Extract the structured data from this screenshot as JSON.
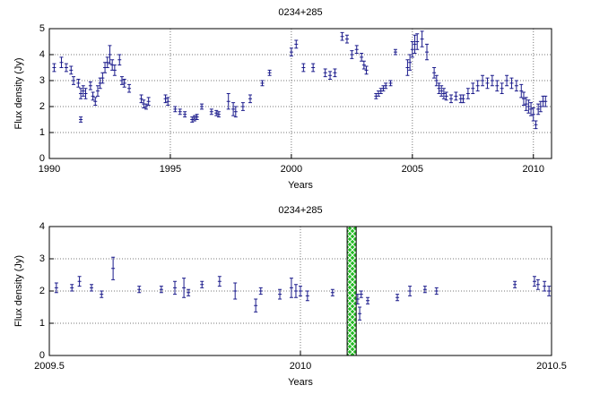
{
  "chart_data": [
    {
      "type": "errorbar",
      "title": "0234+285",
      "xlabel": "Years",
      "ylabel": "Flux density (Jy)",
      "xlim": [
        1990,
        2010.75
      ],
      "ylim": [
        0,
        5
      ],
      "xticks": [
        1990,
        1995,
        2000,
        2005,
        2010
      ],
      "yticks": [
        0,
        1,
        2,
        3,
        4,
        5
      ],
      "grid": true,
      "series": [
        {
          "color": "#1c1c8c",
          "x": [
            1990.2,
            1990.5,
            1990.7,
            1990.9,
            1991.0,
            1991.2,
            1991.3,
            1991.3,
            1991.4,
            1991.5,
            1991.7,
            1991.8,
            1991.9,
            1992.0,
            1992.1,
            1992.2,
            1992.3,
            1992.4,
            1992.5,
            1992.6,
            1992.7,
            1992.9,
            1993.0,
            1993.1,
            1993.3,
            1993.8,
            1993.9,
            1994.0,
            1994.1,
            1994.8,
            1994.9,
            1995.2,
            1995.4,
            1995.6,
            1995.9,
            1996.0,
            1996.1,
            1996.3,
            1996.7,
            1996.9,
            1997.0,
            1997.4,
            1997.6,
            1997.7,
            1998.0,
            1998.3,
            1998.8,
            1999.1,
            2000.0,
            2000.2,
            2000.5,
            2000.9,
            2001.4,
            2001.6,
            2001.8,
            2002.1,
            2002.3,
            2002.5,
            2002.7,
            2002.9,
            2003.0,
            2003.1,
            2003.5,
            2003.6,
            2003.7,
            2003.8,
            2003.9,
            2004.1,
            2004.3,
            2004.8,
            2004.9,
            2005.0,
            2005.1,
            2005.2,
            2005.4,
            2005.6,
            2005.9,
            2006.0,
            2006.1,
            2006.2,
            2006.3,
            2006.4,
            2006.6,
            2006.8,
            2007.0,
            2007.1,
            2007.3,
            2007.5,
            2007.7,
            2007.9,
            2008.1,
            2008.3,
            2008.5,
            2008.7,
            2008.9,
            2009.1,
            2009.3,
            2009.5,
            2009.6,
            2009.7,
            2009.8,
            2009.9,
            2010.0,
            2010.1,
            2010.2,
            2010.3,
            2010.4,
            2010.5
          ],
          "values": [
            3.5,
            3.7,
            3.5,
            3.4,
            3.0,
            2.9,
            2.5,
            1.5,
            2.6,
            2.5,
            2.8,
            2.4,
            2.2,
            2.6,
            2.9,
            3.1,
            3.5,
            3.7,
            4.0,
            3.6,
            3.4,
            3.8,
            3.0,
            2.9,
            2.7,
            2.3,
            2.1,
            2.0,
            2.2,
            2.3,
            2.2,
            1.9,
            1.8,
            1.7,
            1.5,
            1.55,
            1.6,
            2.0,
            1.8,
            1.75,
            1.7,
            2.2,
            1.9,
            1.8,
            2.0,
            2.3,
            2.9,
            3.3,
            4.1,
            4.4,
            3.5,
            3.5,
            3.3,
            3.2,
            3.3,
            4.7,
            4.6,
            4.0,
            4.2,
            3.9,
            3.6,
            3.4,
            2.4,
            2.5,
            2.6,
            2.7,
            2.8,
            2.9,
            4.1,
            3.5,
            3.7,
            4.2,
            4.4,
            4.5,
            4.6,
            4.1,
            3.3,
            3.0,
            2.7,
            2.6,
            2.5,
            2.4,
            2.3,
            2.4,
            2.3,
            2.3,
            2.5,
            2.7,
            2.8,
            3.0,
            2.9,
            3.0,
            2.8,
            2.7,
            3.0,
            2.9,
            2.8,
            2.6,
            2.3,
            2.1,
            2.0,
            1.9,
            1.7,
            1.3,
            1.9,
            2.0,
            2.2,
            2.2
          ],
          "errors": [
            0.15,
            0.2,
            0.15,
            0.15,
            0.15,
            0.15,
            0.2,
            0.1,
            0.2,
            0.2,
            0.15,
            0.15,
            0.15,
            0.2,
            0.2,
            0.2,
            0.2,
            0.2,
            0.35,
            0.2,
            0.2,
            0.2,
            0.15,
            0.15,
            0.15,
            0.15,
            0.15,
            0.1,
            0.15,
            0.15,
            0.15,
            0.1,
            0.1,
            0.1,
            0.1,
            0.1,
            0.1,
            0.1,
            0.1,
            0.1,
            0.1,
            0.3,
            0.25,
            0.2,
            0.15,
            0.15,
            0.1,
            0.1,
            0.15,
            0.15,
            0.15,
            0.15,
            0.15,
            0.15,
            0.15,
            0.15,
            0.15,
            0.15,
            0.15,
            0.15,
            0.15,
            0.15,
            0.1,
            0.1,
            0.1,
            0.1,
            0.1,
            0.1,
            0.1,
            0.3,
            0.3,
            0.3,
            0.35,
            0.3,
            0.3,
            0.3,
            0.2,
            0.2,
            0.2,
            0.2,
            0.2,
            0.15,
            0.15,
            0.15,
            0.15,
            0.15,
            0.2,
            0.2,
            0.2,
            0.2,
            0.2,
            0.2,
            0.2,
            0.2,
            0.2,
            0.2,
            0.2,
            0.25,
            0.25,
            0.25,
            0.25,
            0.25,
            0.25,
            0.15,
            0.2,
            0.2,
            0.2,
            0.2
          ]
        }
      ]
    },
    {
      "type": "errorbar",
      "title": "0234+285",
      "xlabel": "Years",
      "ylabel": "Flux density (Jy)",
      "xlim": [
        2009.5,
        2010.5
      ],
      "ylim": [
        0,
        4
      ],
      "xticks": [
        2009.5,
        2010,
        2010.5
      ],
      "yticks": [
        0,
        1,
        2,
        3,
        4
      ],
      "grid": true,
      "highlight": [
        2010.093,
        2010.111
      ],
      "highlight_color": "#22bb22",
      "series": [
        {
          "color": "#1c1c8c",
          "x": [
            2009.514,
            2009.545,
            2009.56,
            2009.584,
            2009.604,
            2009.627,
            2009.679,
            2009.723,
            2009.75,
            2009.768,
            2009.777,
            2009.804,
            2009.839,
            2009.87,
            2009.911,
            2009.921,
            2009.959,
            2009.982,
            2009.991,
            2010.0,
            2010.014,
            2010.064,
            2010.114,
            2010.118,
            2010.121,
            2010.134,
            2010.193,
            2010.218,
            2010.248,
            2010.271,
            2010.427,
            2010.466,
            2010.473,
            2010.486,
            2010.495
          ],
          "values": [
            2.1,
            2.1,
            2.3,
            2.1,
            1.9,
            2.7,
            2.05,
            2.05,
            2.1,
            2.1,
            1.95,
            2.2,
            2.3,
            2.0,
            1.55,
            2.0,
            1.9,
            2.1,
            2.0,
            2.0,
            1.85,
            1.95,
            1.75,
            1.3,
            1.9,
            1.7,
            1.8,
            2.0,
            2.05,
            2.0,
            2.2,
            2.3,
            2.2,
            2.15,
            2.0
          ],
          "errors": [
            0.15,
            0.1,
            0.15,
            0.1,
            0.1,
            0.35,
            0.1,
            0.1,
            0.2,
            0.3,
            0.1,
            0.1,
            0.15,
            0.25,
            0.2,
            0.1,
            0.15,
            0.3,
            0.2,
            0.15,
            0.15,
            0.1,
            0.15,
            0.2,
            0.1,
            0.1,
            0.1,
            0.15,
            0.1,
            0.1,
            0.1,
            0.15,
            0.15,
            0.15,
            0.15
          ]
        }
      ]
    }
  ]
}
